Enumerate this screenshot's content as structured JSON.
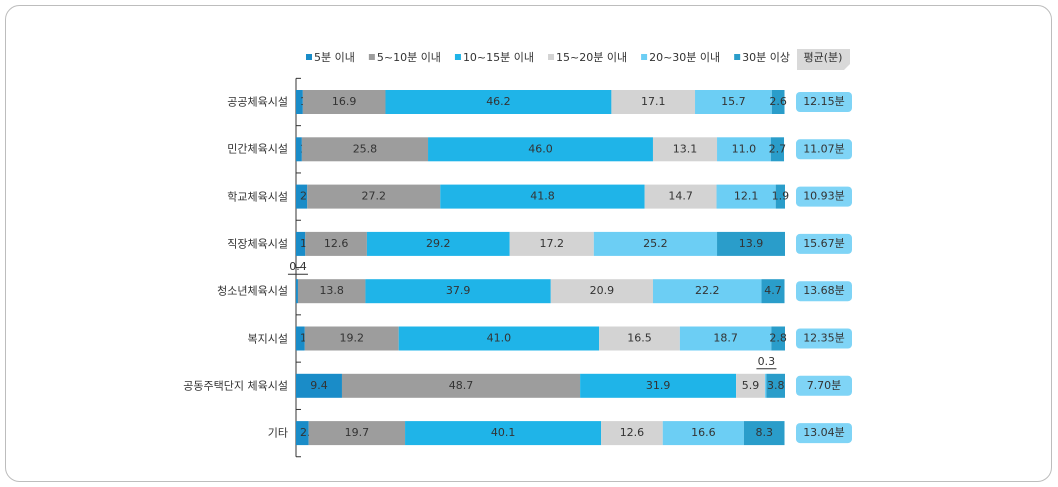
{
  "chart_data": {
    "type": "stacked-bar-horizontal",
    "categories": [
      "공공체육시설",
      "민간체육시설",
      "학교체육시설",
      "직장체육시설",
      "청소년체육시설",
      "복지시설",
      "공동주택단지 체육시설",
      "기타"
    ],
    "xlim": [
      0,
      100
    ],
    "series": [
      {
        "name": "5분 이내",
        "color": "#1a8cc8",
        "values": [
          1.4,
          1.2,
          2.3,
          1.9,
          0.4,
          1.8,
          9.4,
          2.6
        ],
        "value_labels": [
          "1.4",
          "1.2",
          "2.3",
          "1.9",
          "0.4",
          "1.8",
          "9.4",
          "2.6"
        ]
      },
      {
        "name": "5~10분 이내",
        "color": "#9d9d9d",
        "values": [
          16.9,
          25.8,
          27.2,
          12.6,
          13.8,
          19.2,
          48.7,
          19.7
        ],
        "value_labels": [
          "16.9",
          "25.8",
          "27.2",
          "12.6",
          "13.8",
          "19.2",
          "48.7",
          "19.7"
        ]
      },
      {
        "name": "10~15분 이내",
        "color": "#1fb4e8",
        "values": [
          46.2,
          46.0,
          41.8,
          29.2,
          37.9,
          41.0,
          31.9,
          40.1
        ],
        "value_labels": [
          "46.2",
          "46.0",
          "41.8",
          "29.2",
          "37.9",
          "41.0",
          "31.9",
          "40.1"
        ]
      },
      {
        "name": "15~20분 이내",
        "color": "#d3d3d3",
        "values": [
          17.1,
          13.1,
          14.7,
          17.2,
          20.9,
          16.5,
          5.9,
          12.6
        ],
        "value_labels": [
          "17.1",
          "13.1",
          "14.7",
          "17.2",
          "20.9",
          "16.5",
          "5.9",
          "12.6"
        ]
      },
      {
        "name": "20~30분 이내",
        "color": "#6ccef4",
        "values": [
          15.7,
          11.0,
          12.1,
          25.2,
          22.2,
          18.7,
          0.3,
          16.6
        ],
        "value_labels": [
          "15.7",
          "11.0",
          "12.1",
          "25.2",
          "22.2",
          "18.7",
          "0.3",
          "16.6"
        ]
      },
      {
        "name": "30분 이상",
        "color": "#2a9dca",
        "values": [
          2.6,
          2.7,
          1.9,
          13.9,
          4.7,
          2.8,
          3.8,
          8.3
        ],
        "value_labels": [
          "2.6",
          "2.7",
          "1.9",
          "13.9",
          "4.7",
          "2.8",
          "3.8",
          "8.3"
        ]
      }
    ],
    "average": {
      "name": "평균(분)",
      "values": [
        12.15,
        11.07,
        10.93,
        15.67,
        13.68,
        12.35,
        7.7,
        13.04
      ],
      "value_labels": [
        "12.15분",
        "11.07분",
        "10.93분",
        "15.67분",
        "13.68분",
        "12.35분",
        "7.70분",
        "13.04분"
      ]
    }
  }
}
